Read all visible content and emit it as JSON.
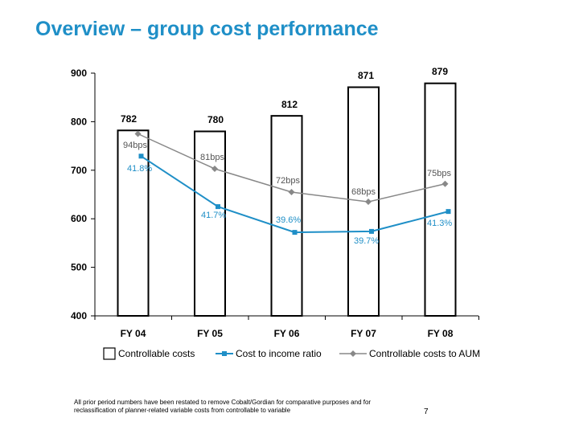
{
  "title": "Overview – group cost performance",
  "chart_data": {
    "type": "bar",
    "categories": [
      "FY 04",
      "FY 05",
      "FY 06",
      "FY 07",
      "FY 08"
    ],
    "ylim": [
      400,
      900
    ],
    "yticks": [
      400,
      500,
      600,
      700,
      800,
      900
    ],
    "grid": false,
    "legend_position": "bottom",
    "series": [
      {
        "name": "Controllable costs",
        "kind": "bar",
        "values": [
          782,
          780,
          812,
          871,
          879
        ],
        "labels": [
          "782",
          "780",
          "812",
          "871",
          "879"
        ],
        "color": "#ffffff",
        "stroke": "#000000"
      },
      {
        "name": "Cost to income ratio",
        "kind": "line",
        "marker": "square",
        "values": [
          729,
          625,
          572,
          574,
          615
        ],
        "labels": [
          "41.8%",
          "41.7%",
          "39.6%",
          "39.7%",
          "41.3%"
        ],
        "color": "#1f8fc7"
      },
      {
        "name": "Controllable costs to AUM",
        "kind": "line",
        "marker": "diamond",
        "values": [
          775,
          703,
          655,
          635,
          672
        ],
        "labels": [
          "94bps",
          "81bps",
          "72bps",
          "68bps",
          "75bps"
        ],
        "color": "#888888"
      }
    ]
  },
  "footnote": "All prior period numbers have been restated to remove Cobalt/Gordian for comparative purposes and for reclassification of planner-related variable costs from controllable to variable",
  "page_number": "7"
}
